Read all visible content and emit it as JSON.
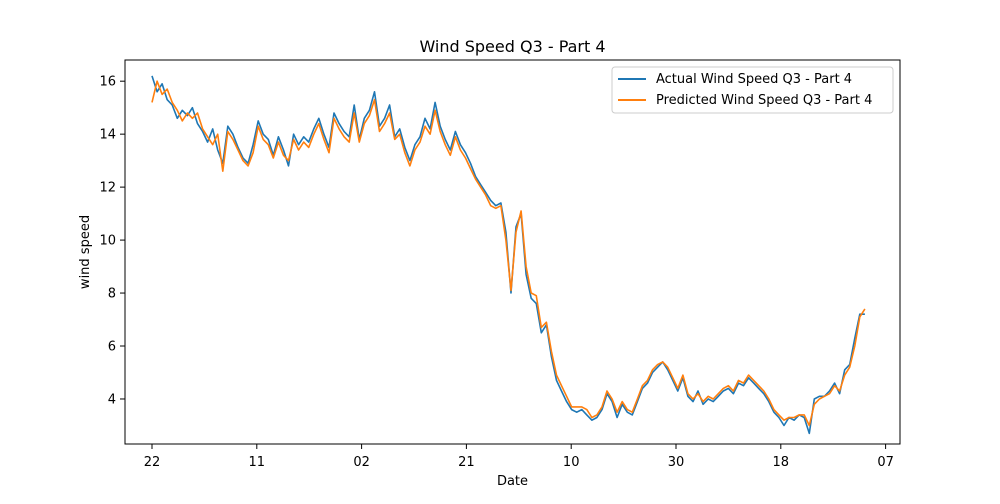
{
  "chart_data": {
    "type": "line",
    "title": "Wind Speed Q3 - Part 4",
    "xlabel": "Date",
    "ylabel": "wind speed",
    "x_ticks": [
      "22",
      "11",
      "02",
      "21",
      "10",
      "30",
      "18",
      "07"
    ],
    "y_ticks": [
      4,
      6,
      8,
      10,
      12,
      14,
      16
    ],
    "xlim": [
      0,
      143
    ],
    "ylim": [
      2.3,
      16.8
    ],
    "grid": false,
    "legend_position": "top-right",
    "series": [
      {
        "name": "Actual Wind Speed Q3 - Part 4",
        "color": "#1f77b4",
        "x": [
          0,
          1,
          2,
          3,
          4,
          5,
          6,
          7,
          8,
          9,
          10,
          11,
          12,
          13,
          14,
          15,
          16,
          17,
          18,
          19,
          20,
          21,
          22,
          23,
          24,
          25,
          26,
          27,
          28,
          29,
          30,
          31,
          32,
          33,
          34,
          35,
          36,
          37,
          38,
          39,
          40,
          41,
          42,
          43,
          44,
          45,
          46,
          47,
          48,
          49,
          50,
          51,
          52,
          53,
          54,
          55,
          56,
          57,
          58,
          59,
          60,
          61,
          62,
          63,
          64,
          65,
          66,
          67,
          68,
          69,
          70,
          71,
          72,
          73,
          74,
          75,
          76,
          77,
          78,
          79,
          80,
          81,
          82,
          83,
          84,
          85,
          86,
          87,
          88,
          89,
          90,
          91,
          92,
          93,
          94,
          95,
          96,
          97,
          98,
          99,
          100,
          101,
          102,
          103,
          104,
          105,
          106,
          107,
          108,
          109,
          110,
          111,
          112,
          113,
          114,
          115,
          116,
          117,
          118,
          119,
          120,
          121,
          122,
          123,
          124,
          125,
          126,
          127,
          128,
          129,
          130,
          131,
          132,
          133,
          134,
          135,
          136,
          137,
          138,
          139,
          140,
          141
        ],
        "values": [
          16.2,
          15.6,
          15.9,
          15.3,
          15.1,
          14.6,
          14.9,
          14.7,
          15.0,
          14.4,
          14.1,
          13.7,
          14.2,
          13.4,
          12.9,
          14.3,
          14.0,
          13.5,
          13.1,
          12.9,
          13.6,
          14.5,
          14.0,
          13.8,
          13.2,
          13.9,
          13.4,
          12.8,
          14.0,
          13.6,
          13.9,
          13.7,
          14.2,
          14.6,
          14.0,
          13.5,
          14.8,
          14.4,
          14.1,
          13.9,
          15.1,
          13.8,
          14.6,
          14.9,
          15.6,
          14.3,
          14.6,
          15.1,
          13.9,
          14.2,
          13.5,
          13.0,
          13.6,
          13.9,
          14.6,
          14.2,
          15.2,
          14.3,
          13.8,
          13.4,
          14.1,
          13.6,
          13.3,
          12.9,
          12.4,
          12.1,
          11.8,
          11.5,
          11.3,
          11.4,
          10.3,
          8.0,
          10.5,
          11.0,
          8.7,
          7.8,
          7.6,
          6.5,
          6.8,
          5.6,
          4.7,
          4.3,
          3.9,
          3.6,
          3.5,
          3.6,
          3.4,
          3.2,
          3.3,
          3.6,
          4.2,
          3.9,
          3.3,
          3.8,
          3.5,
          3.4,
          3.9,
          4.4,
          4.6,
          5.0,
          5.2,
          5.4,
          5.1,
          4.7,
          4.3,
          4.8,
          4.1,
          3.9,
          4.3,
          3.8,
          4.0,
          3.9,
          4.1,
          4.3,
          4.4,
          4.2,
          4.6,
          4.5,
          4.8,
          4.6,
          4.4,
          4.2,
          3.9,
          3.5,
          3.3,
          3.0,
          3.3,
          3.2,
          3.4,
          3.3,
          2.7,
          4.0,
          4.1,
          4.1,
          4.3,
          4.6,
          4.2,
          5.1,
          5.3,
          6.3,
          7.2,
          7.2
        ]
      },
      {
        "name": "Predicted Wind Speed Q3 - Part 4",
        "color": "#ff7f0e",
        "x": [
          0,
          1,
          2,
          3,
          4,
          5,
          6,
          7,
          8,
          9,
          10,
          11,
          12,
          13,
          14,
          15,
          16,
          17,
          18,
          19,
          20,
          21,
          22,
          23,
          24,
          25,
          26,
          27,
          28,
          29,
          30,
          31,
          32,
          33,
          34,
          35,
          36,
          37,
          38,
          39,
          40,
          41,
          42,
          43,
          44,
          45,
          46,
          47,
          48,
          49,
          50,
          51,
          52,
          53,
          54,
          55,
          56,
          57,
          58,
          59,
          60,
          61,
          62,
          63,
          64,
          65,
          66,
          67,
          68,
          69,
          70,
          71,
          72,
          73,
          74,
          75,
          76,
          77,
          78,
          79,
          80,
          81,
          82,
          83,
          84,
          85,
          86,
          87,
          88,
          89,
          90,
          91,
          92,
          93,
          94,
          95,
          96,
          97,
          98,
          99,
          100,
          101,
          102,
          103,
          104,
          105,
          106,
          107,
          108,
          109,
          110,
          111,
          112,
          113,
          114,
          115,
          116,
          117,
          118,
          119,
          120,
          121,
          122,
          123,
          124,
          125,
          126,
          127,
          128,
          129,
          130,
          131,
          132,
          133,
          134,
          135,
          136,
          137,
          138,
          139,
          140,
          141
        ],
        "values": [
          15.2,
          16.0,
          15.5,
          15.7,
          15.2,
          14.9,
          14.5,
          14.8,
          14.6,
          14.8,
          14.2,
          13.9,
          13.6,
          14.0,
          12.6,
          14.1,
          13.8,
          13.4,
          13.0,
          12.8,
          13.3,
          14.3,
          13.8,
          13.6,
          13.1,
          13.7,
          13.2,
          13.0,
          13.8,
          13.4,
          13.7,
          13.5,
          14.0,
          14.4,
          13.8,
          13.3,
          14.6,
          14.2,
          13.9,
          13.7,
          14.8,
          13.7,
          14.4,
          14.7,
          15.3,
          14.1,
          14.4,
          14.8,
          13.8,
          14.0,
          13.3,
          12.8,
          13.4,
          13.7,
          14.3,
          14.0,
          14.9,
          14.1,
          13.6,
          13.2,
          13.9,
          13.4,
          13.1,
          12.7,
          12.3,
          12.0,
          11.7,
          11.3,
          11.2,
          11.3,
          10.0,
          8.1,
          10.3,
          11.1,
          9.0,
          8.0,
          7.9,
          6.7,
          6.9,
          5.8,
          4.9,
          4.5,
          4.1,
          3.7,
          3.7,
          3.7,
          3.6,
          3.3,
          3.4,
          3.7,
          4.3,
          4.0,
          3.5,
          3.9,
          3.6,
          3.5,
          4.0,
          4.5,
          4.7,
          5.1,
          5.3,
          5.4,
          5.2,
          4.8,
          4.4,
          4.9,
          4.2,
          4.0,
          4.2,
          3.9,
          4.1,
          4.0,
          4.2,
          4.4,
          4.5,
          4.3,
          4.7,
          4.6,
          4.9,
          4.7,
          4.5,
          4.3,
          4.0,
          3.6,
          3.4,
          3.2,
          3.3,
          3.3,
          3.4,
          3.4,
          3.0,
          3.8,
          4.0,
          4.1,
          4.2,
          4.5,
          4.3,
          4.9,
          5.2,
          6.0,
          7.1,
          7.4
        ]
      }
    ]
  }
}
